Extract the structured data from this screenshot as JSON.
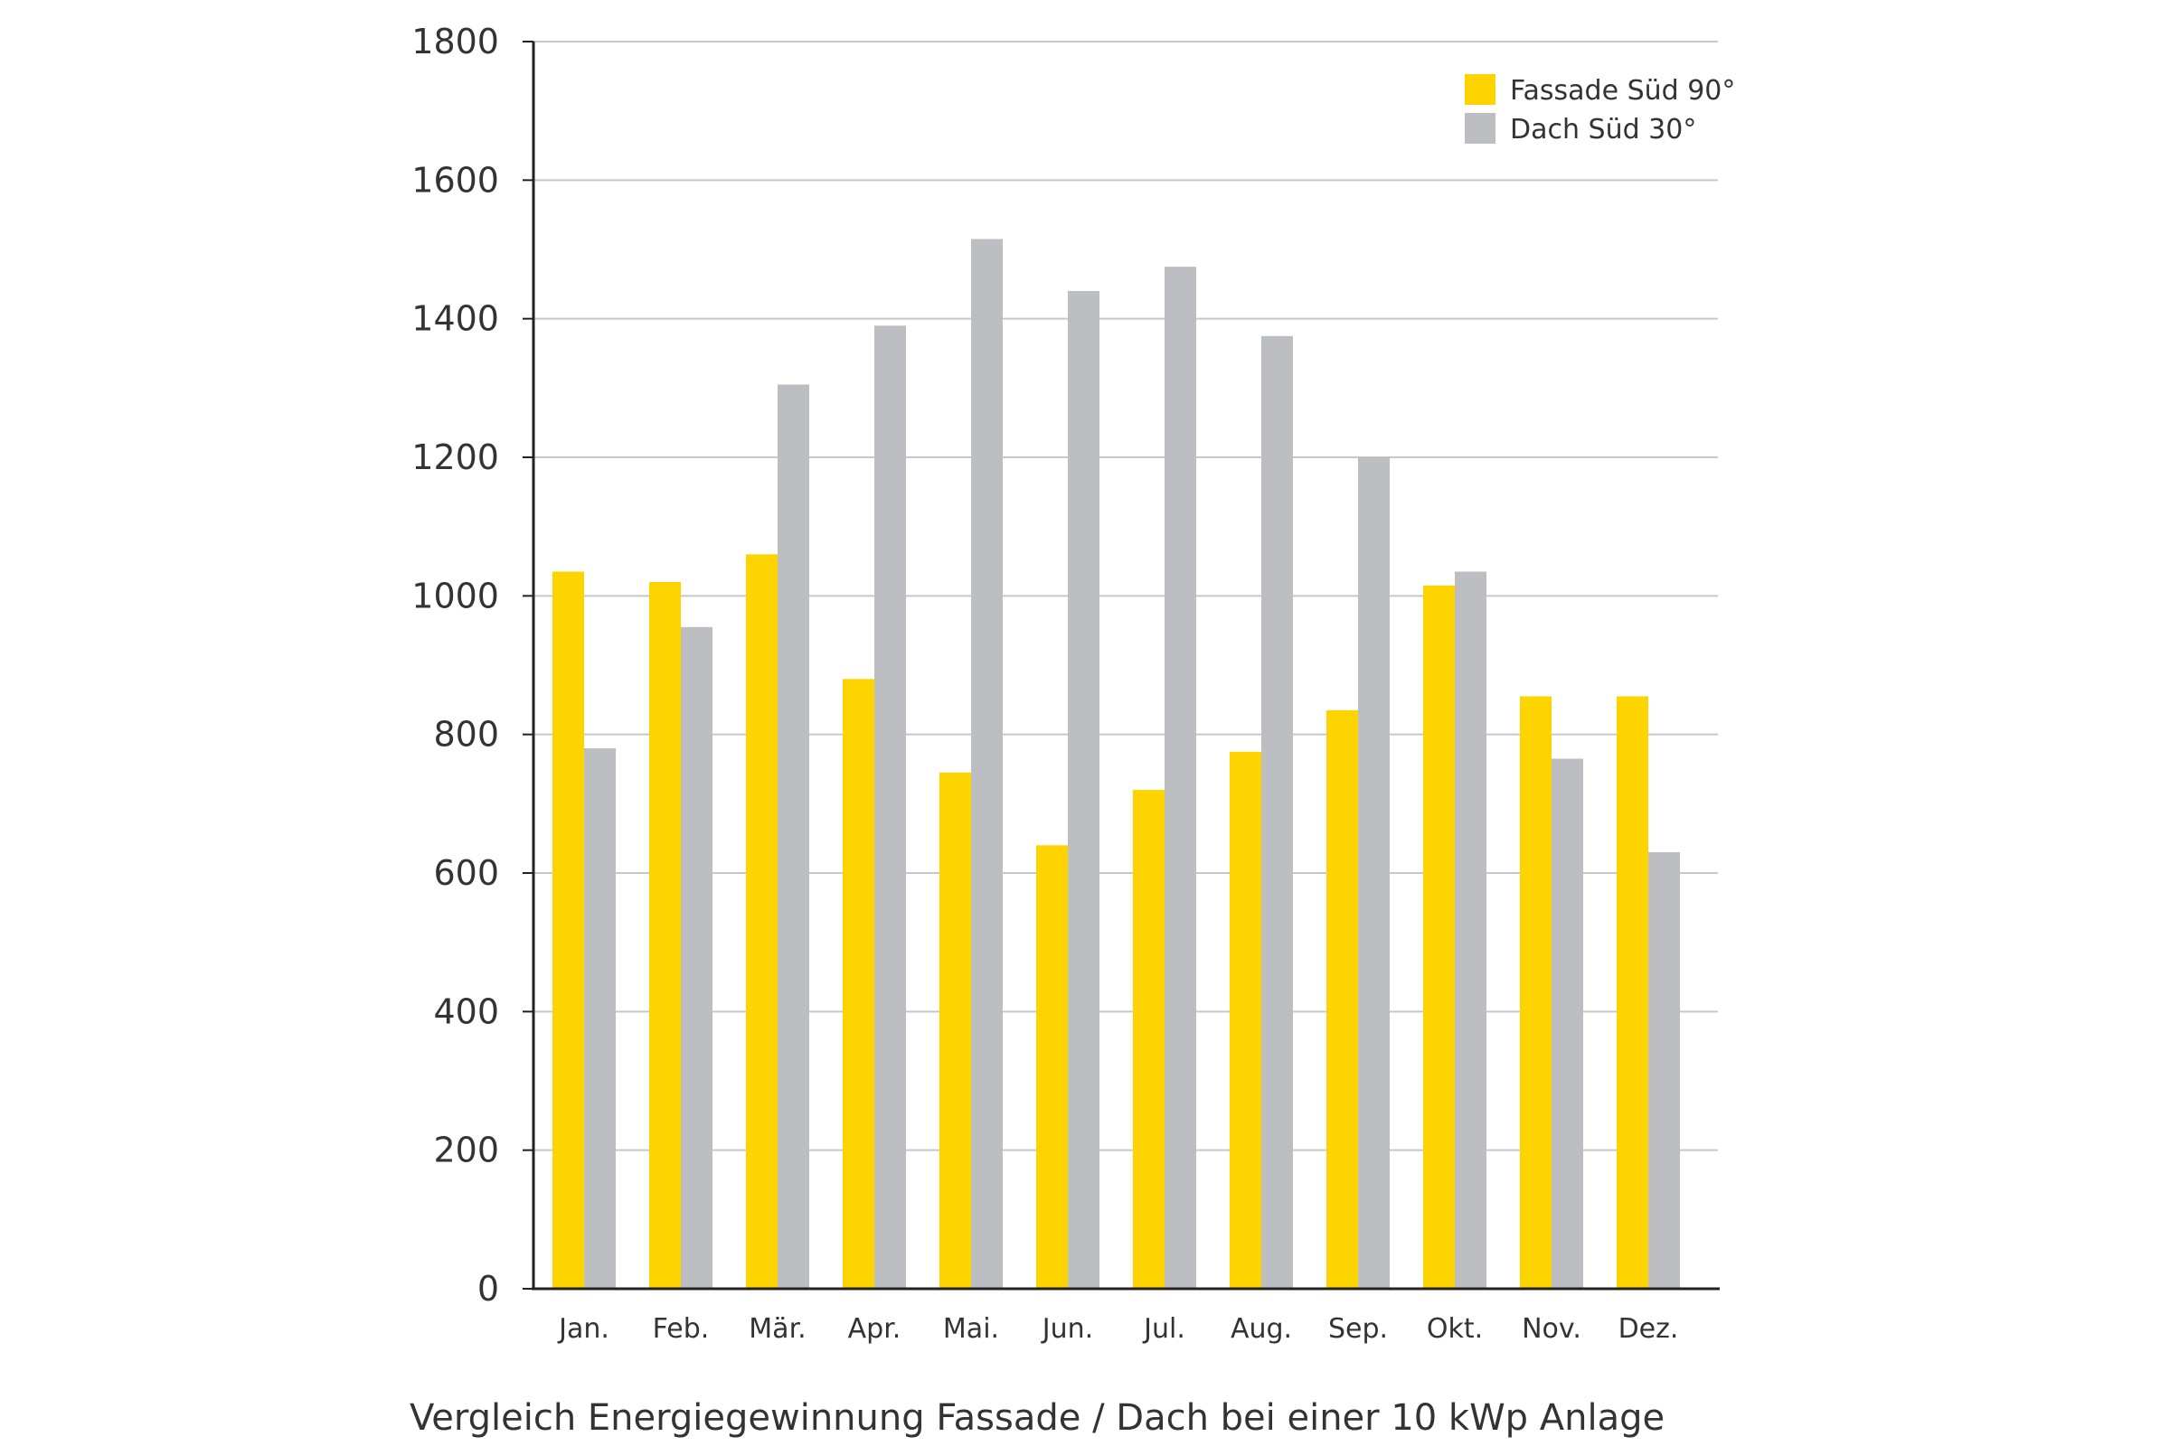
{
  "chart_data": {
    "type": "bar",
    "title": "",
    "caption": "Vergleich Energiegewinnung Fassade / Dach bei einer 10 kWp Anlage",
    "xlabel": "",
    "ylabel": "",
    "ylim": [
      0,
      1800
    ],
    "yticks": [
      0,
      200,
      400,
      600,
      800,
      1000,
      1200,
      1400,
      1600,
      1800
    ],
    "grid": true,
    "legend_position": "top-right",
    "categories": [
      "Jan.",
      "Feb.",
      "Mär.",
      "Apr.",
      "Mai.",
      "Jun.",
      "Jul.",
      "Aug.",
      "Sep.",
      "Okt.",
      "Nov.",
      "Dez."
    ],
    "series": [
      {
        "name": "Fassade Süd 90°",
        "color": "#FDD400",
        "values": [
          1035,
          1020,
          1060,
          880,
          745,
          640,
          720,
          775,
          835,
          1015,
          855,
          855
        ]
      },
      {
        "name": "Dach Süd 30°",
        "color": "#BDBEC2",
        "values": [
          780,
          955,
          1305,
          1390,
          1515,
          1440,
          1475,
          1375,
          1200,
          1035,
          765,
          630
        ]
      }
    ]
  }
}
